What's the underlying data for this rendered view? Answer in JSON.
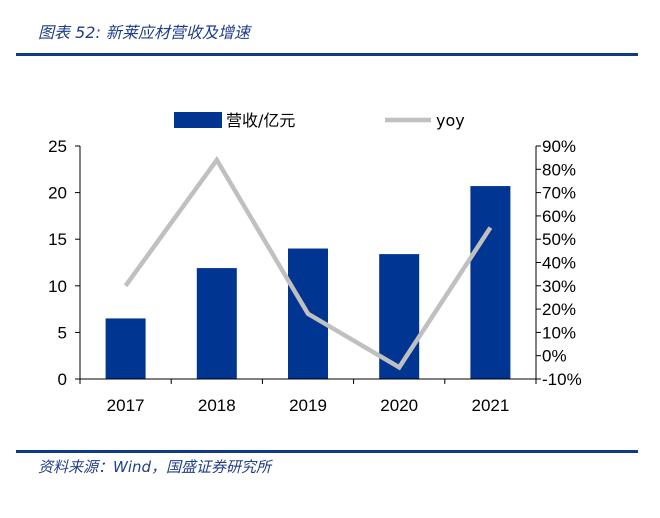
{
  "header": {
    "figure_title": "图表 52:  新莱应材营收及增速"
  },
  "footer": {
    "source": "资料来源：Wind，国盛证券研究所"
  },
  "chart_data": {
    "type": "bar",
    "categories": [
      "2017",
      "2018",
      "2019",
      "2020",
      "2021"
    ],
    "series": [
      {
        "name": "营收/亿元",
        "kind": "bar",
        "axis": "left",
        "color": "#003591",
        "values": [
          6.5,
          11.9,
          14.0,
          13.4,
          20.7
        ]
      },
      {
        "name": "yoy",
        "kind": "line",
        "axis": "right",
        "color": "#c0c0c0",
        "values": [
          0.3,
          0.84,
          0.18,
          -0.05,
          0.55
        ]
      }
    ],
    "left_axis": {
      "ylim": [
        0,
        25
      ],
      "ticks": [
        0,
        5,
        10,
        15,
        20,
        25
      ],
      "tick_labels": [
        "0",
        "5",
        "10",
        "15",
        "20",
        "25"
      ]
    },
    "right_axis": {
      "ylim": [
        -0.1,
        0.9
      ],
      "ticks": [
        -0.1,
        0,
        0.1,
        0.2,
        0.3,
        0.4,
        0.5,
        0.6,
        0.7,
        0.8,
        0.9
      ],
      "tick_labels": [
        "-10%",
        "0%",
        "10%",
        "20%",
        "30%",
        "40%",
        "50%",
        "60%",
        "70%",
        "80%",
        "90%"
      ]
    },
    "legend": {
      "position": "top"
    },
    "grid": false
  }
}
